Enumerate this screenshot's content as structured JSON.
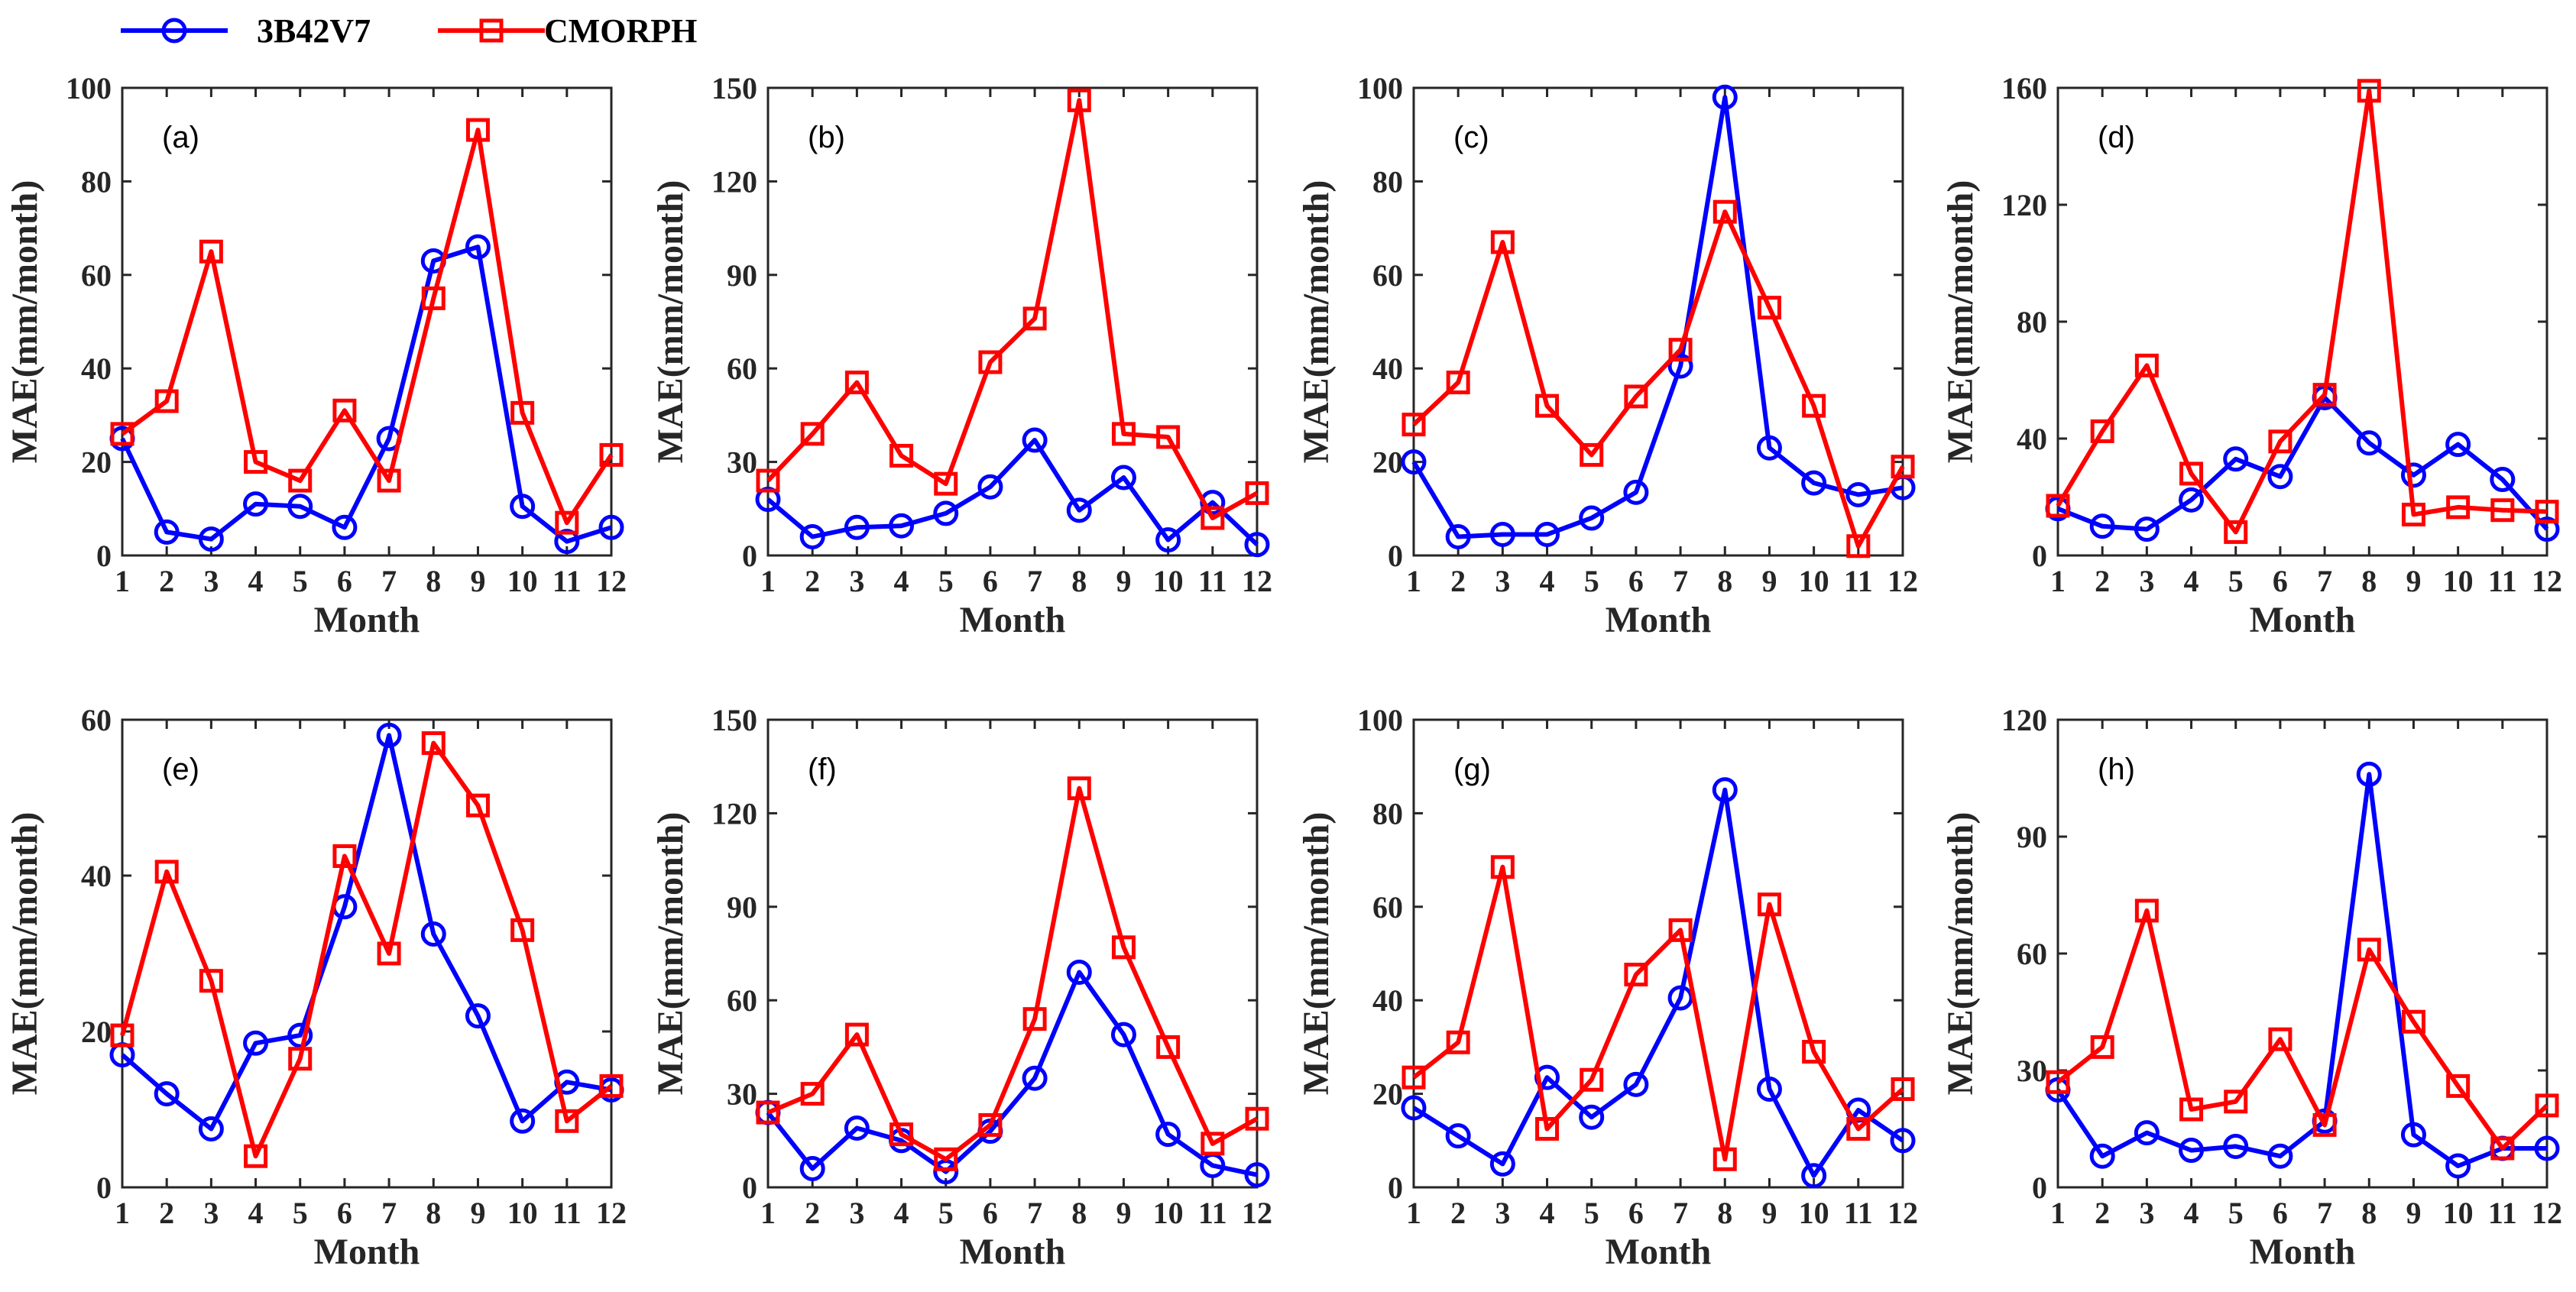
{
  "legend": {
    "entries": [
      {
        "label": "3B42V7",
        "color": "#0000FF",
        "marker": "circle"
      },
      {
        "label": "CMORPH",
        "color": "#FF0000",
        "marker": "square"
      }
    ]
  },
  "colors": {
    "series_1": "#0000FF",
    "series_2": "#FF0000"
  },
  "chart_data": [
    {
      "type": "line",
      "panel_label": "(a)",
      "xlabel": "Month",
      "ylabel": "MAE(mm/month)",
      "categories": [
        1,
        2,
        3,
        4,
        5,
        6,
        7,
        8,
        9,
        10,
        11,
        12
      ],
      "ylim": [
        0,
        100
      ],
      "yticks": [
        0,
        20,
        40,
        60,
        80,
        100
      ],
      "series": [
        {
          "name": "3B42V7",
          "values": [
            25,
            5,
            3.5,
            11,
            10.5,
            6,
            25,
            63,
            66,
            10.5,
            3,
            6
          ]
        },
        {
          "name": "CMORPH",
          "values": [
            26,
            33,
            65,
            20,
            16,
            31,
            16,
            55,
            91,
            30.5,
            7,
            21.5
          ]
        }
      ]
    },
    {
      "type": "line",
      "panel_label": "(b)",
      "xlabel": "Month",
      "ylabel": "MAE(mm/month)",
      "categories": [
        1,
        2,
        3,
        4,
        5,
        6,
        7,
        8,
        9,
        10,
        11,
        12
      ],
      "ylim": [
        0,
        150
      ],
      "yticks": [
        0,
        30,
        60,
        90,
        120,
        150
      ],
      "series": [
        {
          "name": "3B42V7",
          "values": [
            18,
            6,
            9,
            9.5,
            13.5,
            22,
            37,
            14.5,
            25,
            5,
            17,
            3.5
          ]
        },
        {
          "name": "CMORPH",
          "values": [
            24,
            39,
            55.5,
            32,
            23,
            62,
            76,
            146,
            39,
            38,
            12,
            20
          ]
        }
      ]
    },
    {
      "type": "line",
      "panel_label": "(c)",
      "xlabel": "Month",
      "ylabel": "MAE(mm/month)",
      "categories": [
        1,
        2,
        3,
        4,
        5,
        6,
        7,
        8,
        9,
        10,
        11,
        12
      ],
      "ylim": [
        0,
        100
      ],
      "yticks": [
        0,
        20,
        40,
        60,
        80,
        100
      ],
      "series": [
        {
          "name": "3B42V7",
          "values": [
            20,
            4,
            4.5,
            4.5,
            8,
            13.5,
            40.5,
            98,
            23,
            15.5,
            13,
            14.5
          ]
        },
        {
          "name": "CMORPH",
          "values": [
            28,
            37,
            67,
            32,
            21.5,
            34,
            44,
            73.5,
            53,
            32,
            2,
            19
          ]
        }
      ]
    },
    {
      "type": "line",
      "panel_label": "(d)",
      "xlabel": "Month",
      "ylabel": "MAE(mm/month)",
      "categories": [
        1,
        2,
        3,
        4,
        5,
        6,
        7,
        8,
        9,
        10,
        11,
        12
      ],
      "ylim": [
        0,
        160
      ],
      "yticks": [
        0,
        40,
        80,
        120,
        160
      ],
      "series": [
        {
          "name": "3B42V7",
          "values": [
            16,
            10,
            9,
            19,
            33,
            27,
            54,
            38.5,
            27.5,
            38,
            26,
            9
          ]
        },
        {
          "name": "CMORPH",
          "values": [
            17,
            42.5,
            65,
            28,
            8,
            39,
            55,
            159,
            14,
            16.5,
            15.5,
            15
          ]
        }
      ]
    },
    {
      "type": "line",
      "panel_label": "(e)",
      "xlabel": "Month",
      "ylabel": "MAE(mm/month)",
      "categories": [
        1,
        2,
        3,
        4,
        5,
        6,
        7,
        8,
        9,
        10,
        11,
        12
      ],
      "ylim": [
        0,
        60
      ],
      "yticks": [
        0,
        20,
        40,
        60
      ],
      "series": [
        {
          "name": "3B42V7",
          "values": [
            17,
            12,
            7.5,
            18.5,
            19.5,
            36,
            58,
            32.5,
            22,
            8.5,
            13.5,
            12.5
          ]
        },
        {
          "name": "CMORPH",
          "values": [
            19.5,
            40.5,
            26.5,
            4,
            16.5,
            42.5,
            30,
            57,
            49,
            33,
            8.5,
            13
          ]
        }
      ]
    },
    {
      "type": "line",
      "panel_label": "(f)",
      "xlabel": "Month",
      "ylabel": "MAE(mm/month)",
      "categories": [
        1,
        2,
        3,
        4,
        5,
        6,
        7,
        8,
        9,
        10,
        11,
        12
      ],
      "ylim": [
        0,
        150
      ],
      "yticks": [
        0,
        30,
        60,
        90,
        120,
        150
      ],
      "series": [
        {
          "name": "3B42V7",
          "values": [
            24,
            6,
            19,
            15,
            5,
            18,
            35,
            69,
            49,
            17,
            7,
            4
          ]
        },
        {
          "name": "CMORPH",
          "values": [
            24,
            30,
            49,
            17,
            9,
            20,
            54,
            128,
            77,
            45,
            14,
            22
          ]
        }
      ]
    },
    {
      "type": "line",
      "panel_label": "(g)",
      "xlabel": "Month",
      "ylabel": "MAE(mm/month)",
      "categories": [
        1,
        2,
        3,
        4,
        5,
        6,
        7,
        8,
        9,
        10,
        11,
        12
      ],
      "ylim": [
        0,
        100
      ],
      "yticks": [
        0,
        20,
        40,
        60,
        80,
        100
      ],
      "series": [
        {
          "name": "3B42V7",
          "values": [
            17,
            11,
            5,
            23.5,
            15,
            22,
            40.5,
            85,
            21,
            2.5,
            16.5,
            10
          ]
        },
        {
          "name": "CMORPH",
          "values": [
            23.5,
            31,
            68.5,
            12.5,
            23,
            45.5,
            55,
            6,
            60.5,
            29,
            12.5,
            21
          ]
        }
      ]
    },
    {
      "type": "line",
      "panel_label": "(h)",
      "xlabel": "Month",
      "ylabel": "MAE(mm/month)",
      "categories": [
        1,
        2,
        3,
        4,
        5,
        6,
        7,
        8,
        9,
        10,
        11,
        12
      ],
      "ylim": [
        0,
        120
      ],
      "yticks": [
        0,
        30,
        60,
        90,
        120
      ],
      "series": [
        {
          "name": "3B42V7",
          "values": [
            25,
            8,
            14,
            9.5,
            10.5,
            8,
            17,
            106,
            13.5,
            5.5,
            10,
            10
          ]
        },
        {
          "name": "CMORPH",
          "values": [
            27,
            36,
            71,
            20,
            22,
            38,
            16,
            61,
            42.5,
            26,
            10,
            21
          ]
        }
      ]
    }
  ]
}
